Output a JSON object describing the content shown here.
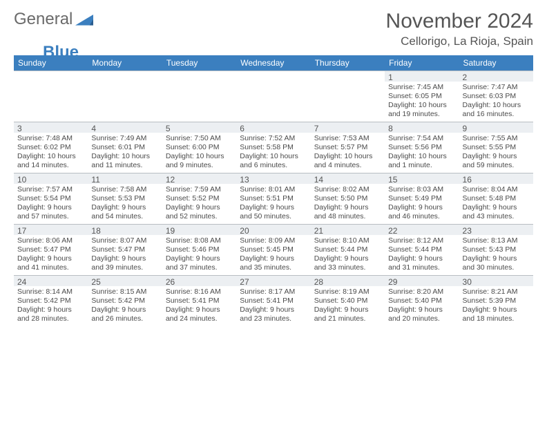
{
  "brand": {
    "part1": "General",
    "part2": "Blue"
  },
  "title": {
    "month": "November 2024",
    "location": "Cellorigo, La Rioja, Spain"
  },
  "ui": {
    "header_bg": "#3b7fbf"
  },
  "columns": [
    "Sunday",
    "Monday",
    "Tuesday",
    "Wednesday",
    "Thursday",
    "Friday",
    "Saturday"
  ],
  "weeks": [
    [
      {
        "day": ""
      },
      {
        "day": ""
      },
      {
        "day": ""
      },
      {
        "day": ""
      },
      {
        "day": ""
      },
      {
        "day": "1",
        "sunrise": "Sunrise: 7:45 AM",
        "sunset": "Sunset: 6:05 PM",
        "daylight": "Daylight: 10 hours and 19 minutes."
      },
      {
        "day": "2",
        "sunrise": "Sunrise: 7:47 AM",
        "sunset": "Sunset: 6:03 PM",
        "daylight": "Daylight: 10 hours and 16 minutes."
      }
    ],
    [
      {
        "day": "3",
        "sunrise": "Sunrise: 7:48 AM",
        "sunset": "Sunset: 6:02 PM",
        "daylight": "Daylight: 10 hours and 14 minutes."
      },
      {
        "day": "4",
        "sunrise": "Sunrise: 7:49 AM",
        "sunset": "Sunset: 6:01 PM",
        "daylight": "Daylight: 10 hours and 11 minutes."
      },
      {
        "day": "5",
        "sunrise": "Sunrise: 7:50 AM",
        "sunset": "Sunset: 6:00 PM",
        "daylight": "Daylight: 10 hours and 9 minutes."
      },
      {
        "day": "6",
        "sunrise": "Sunrise: 7:52 AM",
        "sunset": "Sunset: 5:58 PM",
        "daylight": "Daylight: 10 hours and 6 minutes."
      },
      {
        "day": "7",
        "sunrise": "Sunrise: 7:53 AM",
        "sunset": "Sunset: 5:57 PM",
        "daylight": "Daylight: 10 hours and 4 minutes."
      },
      {
        "day": "8",
        "sunrise": "Sunrise: 7:54 AM",
        "sunset": "Sunset: 5:56 PM",
        "daylight": "Daylight: 10 hours and 1 minute."
      },
      {
        "day": "9",
        "sunrise": "Sunrise: 7:55 AM",
        "sunset": "Sunset: 5:55 PM",
        "daylight": "Daylight: 9 hours and 59 minutes."
      }
    ],
    [
      {
        "day": "10",
        "sunrise": "Sunrise: 7:57 AM",
        "sunset": "Sunset: 5:54 PM",
        "daylight": "Daylight: 9 hours and 57 minutes."
      },
      {
        "day": "11",
        "sunrise": "Sunrise: 7:58 AM",
        "sunset": "Sunset: 5:53 PM",
        "daylight": "Daylight: 9 hours and 54 minutes."
      },
      {
        "day": "12",
        "sunrise": "Sunrise: 7:59 AM",
        "sunset": "Sunset: 5:52 PM",
        "daylight": "Daylight: 9 hours and 52 minutes."
      },
      {
        "day": "13",
        "sunrise": "Sunrise: 8:01 AM",
        "sunset": "Sunset: 5:51 PM",
        "daylight": "Daylight: 9 hours and 50 minutes."
      },
      {
        "day": "14",
        "sunrise": "Sunrise: 8:02 AM",
        "sunset": "Sunset: 5:50 PM",
        "daylight": "Daylight: 9 hours and 48 minutes."
      },
      {
        "day": "15",
        "sunrise": "Sunrise: 8:03 AM",
        "sunset": "Sunset: 5:49 PM",
        "daylight": "Daylight: 9 hours and 46 minutes."
      },
      {
        "day": "16",
        "sunrise": "Sunrise: 8:04 AM",
        "sunset": "Sunset: 5:48 PM",
        "daylight": "Daylight: 9 hours and 43 minutes."
      }
    ],
    [
      {
        "day": "17",
        "sunrise": "Sunrise: 8:06 AM",
        "sunset": "Sunset: 5:47 PM",
        "daylight": "Daylight: 9 hours and 41 minutes."
      },
      {
        "day": "18",
        "sunrise": "Sunrise: 8:07 AM",
        "sunset": "Sunset: 5:47 PM",
        "daylight": "Daylight: 9 hours and 39 minutes."
      },
      {
        "day": "19",
        "sunrise": "Sunrise: 8:08 AM",
        "sunset": "Sunset: 5:46 PM",
        "daylight": "Daylight: 9 hours and 37 minutes."
      },
      {
        "day": "20",
        "sunrise": "Sunrise: 8:09 AM",
        "sunset": "Sunset: 5:45 PM",
        "daylight": "Daylight: 9 hours and 35 minutes."
      },
      {
        "day": "21",
        "sunrise": "Sunrise: 8:10 AM",
        "sunset": "Sunset: 5:44 PM",
        "daylight": "Daylight: 9 hours and 33 minutes."
      },
      {
        "day": "22",
        "sunrise": "Sunrise: 8:12 AM",
        "sunset": "Sunset: 5:44 PM",
        "daylight": "Daylight: 9 hours and 31 minutes."
      },
      {
        "day": "23",
        "sunrise": "Sunrise: 8:13 AM",
        "sunset": "Sunset: 5:43 PM",
        "daylight": "Daylight: 9 hours and 30 minutes."
      }
    ],
    [
      {
        "day": "24",
        "sunrise": "Sunrise: 8:14 AM",
        "sunset": "Sunset: 5:42 PM",
        "daylight": "Daylight: 9 hours and 28 minutes."
      },
      {
        "day": "25",
        "sunrise": "Sunrise: 8:15 AM",
        "sunset": "Sunset: 5:42 PM",
        "daylight": "Daylight: 9 hours and 26 minutes."
      },
      {
        "day": "26",
        "sunrise": "Sunrise: 8:16 AM",
        "sunset": "Sunset: 5:41 PM",
        "daylight": "Daylight: 9 hours and 24 minutes."
      },
      {
        "day": "27",
        "sunrise": "Sunrise: 8:17 AM",
        "sunset": "Sunset: 5:41 PM",
        "daylight": "Daylight: 9 hours and 23 minutes."
      },
      {
        "day": "28",
        "sunrise": "Sunrise: 8:19 AM",
        "sunset": "Sunset: 5:40 PM",
        "daylight": "Daylight: 9 hours and 21 minutes."
      },
      {
        "day": "29",
        "sunrise": "Sunrise: 8:20 AM",
        "sunset": "Sunset: 5:40 PM",
        "daylight": "Daylight: 9 hours and 20 minutes."
      },
      {
        "day": "30",
        "sunrise": "Sunrise: 8:21 AM",
        "sunset": "Sunset: 5:39 PM",
        "daylight": "Daylight: 9 hours and 18 minutes."
      }
    ]
  ]
}
